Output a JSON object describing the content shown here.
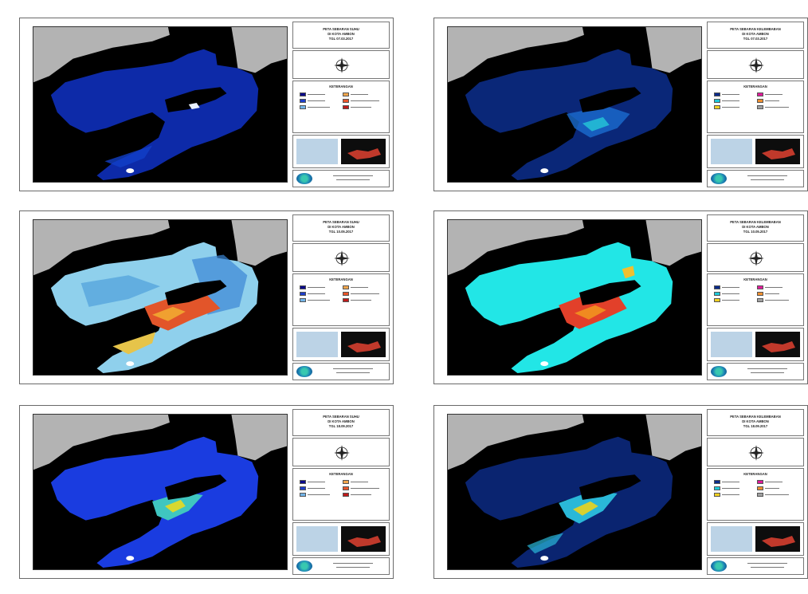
{
  "colors": {
    "sea": "#000000",
    "land_outside": "#b3b3b3",
    "white_spot": "#ffffff"
  },
  "panels": [
    {
      "id": "p1",
      "title_lines": [
        "PETA SEBARAN SUHU",
        "DI KOTA AMBON",
        "TGL 07.03.2017"
      ],
      "legend_header": "KETERANGAN",
      "style": "suhu-dark",
      "legend_colors": [
        "#0a0a8a",
        "#1e3ec8",
        "#72b4e8",
        "#f2a64c",
        "#e8552a",
        "#c01a1a"
      ]
    },
    {
      "id": "p2",
      "title_lines": [
        "PETA SEBARAN KELEMBABAN",
        "DI KOTA AMBON",
        "TGL 07.03.2017"
      ],
      "legend_header": "KETERANGAN",
      "style": "lembab-dark",
      "legend_colors": [
        "#0a2a8a",
        "#1ec8d8",
        "#f0d020",
        "#f09030",
        "#e01a9a",
        "#a0a0a0"
      ]
    },
    {
      "id": "p3",
      "title_lines": [
        "PETA SEBARAN SUHU",
        "DI KOTA AMBON",
        "TGL 10.05.2017"
      ],
      "legend_header": "KETERANGAN",
      "style": "suhu-light",
      "legend_colors": [
        "#0a0a8a",
        "#1e3ec8",
        "#72b4e8",
        "#f2a64c",
        "#e8552a",
        "#c01a1a"
      ]
    },
    {
      "id": "p4",
      "title_lines": [
        "PETA SEBARAN KELEMBABAN",
        "DI KOTA AMBON",
        "TGL 10.05.2017"
      ],
      "legend_header": "KETERANGAN",
      "style": "lembab-cyan",
      "legend_colors": [
        "#0a2a8a",
        "#1ec8d8",
        "#f0d020",
        "#f09030",
        "#e01a9a",
        "#a0a0a0"
      ]
    },
    {
      "id": "p5",
      "title_lines": [
        "PETA SEBARAN SUHU",
        "DI KOTA AMBON",
        "TGL 18.09.2017"
      ],
      "legend_header": "KETERANGAN",
      "style": "suhu-blue",
      "legend_colors": [
        "#0a0a8a",
        "#1e3ec8",
        "#72b4e8",
        "#f2a64c",
        "#e8552a",
        "#c01a1a"
      ]
    },
    {
      "id": "p6",
      "title_lines": [
        "PETA SEBARAN KELEMBABAN",
        "DI KOTA AMBON",
        "TGL 18.09.2017"
      ],
      "legend_header": "KETERANGAN",
      "style": "lembab-navy",
      "legend_colors": [
        "#0a2a8a",
        "#1ec8d8",
        "#f0d020",
        "#f09030",
        "#e01a9a",
        "#a0a0a0"
      ]
    }
  ]
}
